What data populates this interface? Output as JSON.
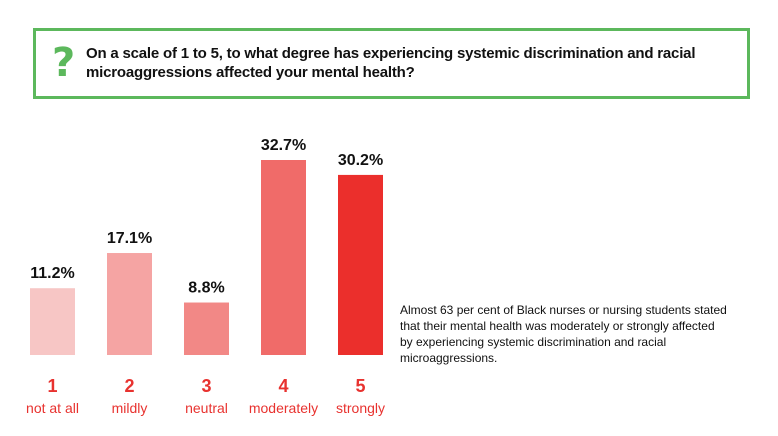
{
  "question": {
    "icon": "question-mark-icon",
    "text": "On a scale of 1 to 5, to what degree has experiencing systemic discrimination and racial microaggressions affected your mental health?"
  },
  "colors": {
    "accent_green": "#5cb85c",
    "label_red": "#e8322f"
  },
  "chart_data": {
    "type": "bar",
    "categories": [
      "1",
      "2",
      "3",
      "4",
      "5"
    ],
    "category_sublabels": [
      "not at all",
      "mildly",
      "neutral",
      "moderately",
      "strongly"
    ],
    "values": [
      11.2,
      17.1,
      8.8,
      32.7,
      30.2
    ],
    "value_labels": [
      "11.2%",
      "17.1%",
      "8.8%",
      "32.7%",
      "30.2%"
    ],
    "bar_colors": [
      "#f7c6c5",
      "#f5a4a3",
      "#f28886",
      "#f06b69",
      "#eb2f2c"
    ],
    "title": "",
    "xlabel": "",
    "ylabel": "",
    "ylim": [
      0,
      32.7
    ],
    "grid": false,
    "legend": "none"
  },
  "note": {
    "text": "Almost 63 per cent of Black nurses or nursing students stated that their mental health was moderately or strongly affected by experiencing systemic discrimination and racial microaggressions."
  }
}
